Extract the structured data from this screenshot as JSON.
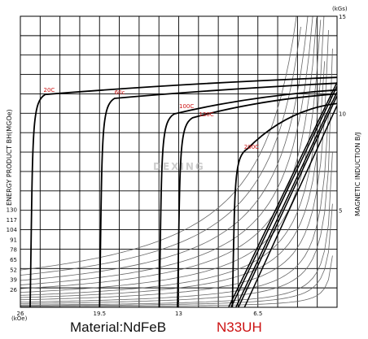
{
  "captions": {
    "material": "Material:NdFeB",
    "grade": "N33UH",
    "watermark": "DEXING"
  },
  "colors": {
    "grade": "#cc1111",
    "temp_label": "#cc1111",
    "grid": "#000000",
    "energy_curve": "#666666",
    "curve": "#000000"
  },
  "chart_data": {
    "type": "line",
    "xlabel": "(kOe)",
    "ylabel_left": "ENERGY PRODUCT BH(MGOe)",
    "ylabel_right": "MAGNETIC INDUCTION B/J",
    "right_unit": "(kGs)",
    "x_range": [
      26,
      0
    ],
    "right_range": [
      0,
      15
    ],
    "x_ticks": [
      "26",
      "19.5",
      "13",
      "6.5"
    ],
    "right_ticks": [
      "15",
      "10",
      "5"
    ],
    "left_ticks": [
      "130",
      "117",
      "104",
      "91",
      "78",
      "65",
      "52",
      "39",
      "26"
    ],
    "grid": true,
    "legend": "none",
    "temperatures": [
      "20C",
      "60c",
      "100C",
      "120C",
      "200C"
    ],
    "series": [
      {
        "name": "20C",
        "knee_H": 24.9,
        "B_knee": 10.8,
        "B_r": 11.6,
        "J_end": 11.85,
        "B_zero_H": 8.9
      },
      {
        "name": "60c",
        "knee_H": 19.2,
        "B_knee": 10.6,
        "B_r": 11.4,
        "J_end": 11.55,
        "B_zero_H": 8.7
      },
      {
        "name": "100C",
        "knee_H": 14.3,
        "B_knee": 9.8,
        "B_r": 11.1,
        "J_end": 11.2,
        "B_zero_H": 8.3
      },
      {
        "name": "120C",
        "knee_H": 12.8,
        "B_knee": 9.6,
        "B_r": 10.9,
        "J_end": 11.0,
        "B_zero_H": 8.1
      },
      {
        "name": "200C",
        "knee_H": 8.3,
        "B_knee": 8.0,
        "B_r": 10.4,
        "J_end": 10.5,
        "B_zero_H": 7.6
      }
    ],
    "energy_curves_BH": [
      1,
      2,
      3,
      5,
      7,
      10,
      13,
      16,
      20,
      25,
      30,
      36,
      43,
      50
    ]
  }
}
